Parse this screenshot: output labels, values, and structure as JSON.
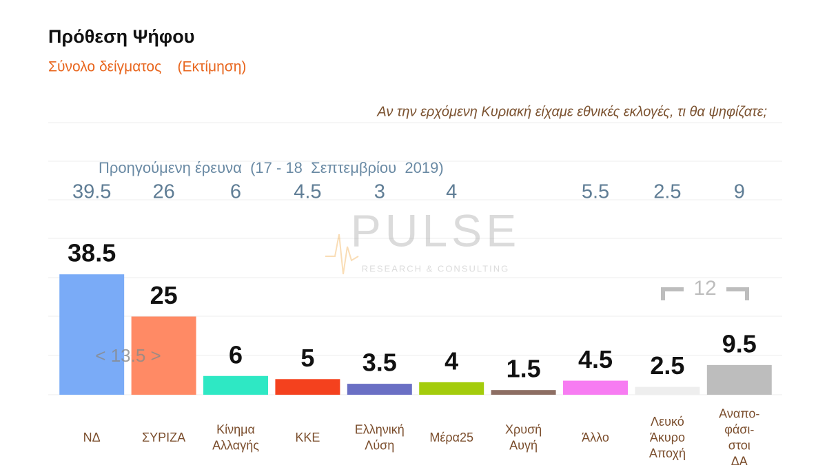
{
  "chart_data": {
    "type": "bar",
    "title": "Πρόθεση Ψήφου",
    "subtitle": "Σύνολο δείγματος    (Εκτίμηση)",
    "question": "Αν την ερχόμενη Κυριακή είχαμε εθνικές εκλογές, τι θα ψηφίζατε;",
    "previous_label": "Προηγούμενη έρευνα  (17 - 18  Σεπτεμβρίου  2019)",
    "watermark": {
      "name": "PULSE",
      "tagline": "RESEARCH & CONSULTING"
    },
    "categories": [
      "ΝΔ",
      "ΣΥΡΙΖΑ",
      "Κίνημα\nΑλλαγής",
      "ΚΚΕ",
      "Ελληνική\nΛύση",
      "Μέρα25",
      "Χρυσή\nΑυγή",
      "Άλλο",
      "Λευκό\nΆκυρο\nΑποχή",
      "Αναπο-\nφάσι-\nστοι\nΔΑ"
    ],
    "values": [
      38.5,
      25,
      6,
      5,
      3.5,
      4,
      1.5,
      4.5,
      2.5,
      9.5
    ],
    "previous_values": [
      39.5,
      26,
      6,
      4.5,
      3,
      4,
      null,
      5.5,
      2.5,
      9
    ],
    "colors": [
      "#7aabf7",
      "#ff8a65",
      "#2ee8c4",
      "#f4411e",
      "#6a6fc4",
      "#a4cc0c",
      "#8d6e63",
      "#f77cf2",
      "#eeeeee",
      "#bdbdbd"
    ],
    "ylim": [
      0,
      87
    ],
    "annotations": [
      {
        "text": "< 13.5 >"
      },
      {
        "text": "12"
      }
    ]
  }
}
